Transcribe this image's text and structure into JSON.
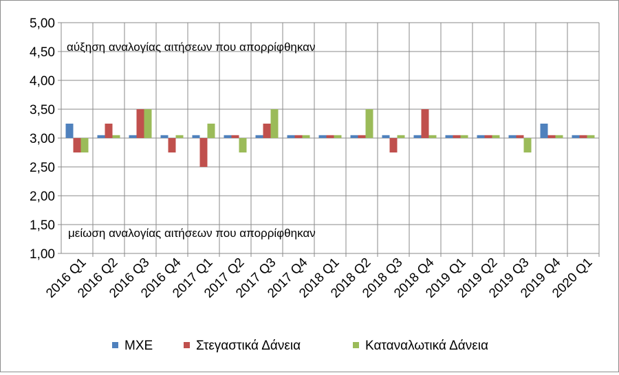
{
  "chart_data": {
    "type": "bar",
    "title": "",
    "xlabel": "",
    "ylabel": "",
    "ylim": [
      1.0,
      5.0
    ],
    "ytick_step": 0.5,
    "yticks": [
      "1,00",
      "1,50",
      "2,00",
      "2,50",
      "3,00",
      "3,50",
      "4,00",
      "4,50",
      "5,00"
    ],
    "baseline": 3.0,
    "grid": true,
    "legend_position": "bottom",
    "categories": [
      "2016 Q1",
      "2016 Q2",
      "2016 Q3",
      "2016 Q4",
      "2017 Q1",
      "2017 Q2",
      "2017 Q3",
      "2017 Q4",
      "2018 Q1",
      "2018 Q2",
      "2018 Q3",
      "2018 Q4",
      "2019 Q1",
      "2019 Q2",
      "2019 Q3",
      "2019 Q4",
      "2020 Q1"
    ],
    "series": [
      {
        "name": "ΜΧΕ",
        "color": "#4f81bd",
        "values": [
          3.25,
          3.05,
          3.05,
          3.05,
          3.05,
          3.05,
          3.05,
          3.05,
          3.05,
          3.05,
          3.05,
          3.05,
          3.05,
          3.05,
          3.05,
          3.25,
          3.05
        ]
      },
      {
        "name": "Στεγαστικά Δάνεια",
        "color": "#c0504d",
        "values": [
          2.75,
          3.25,
          3.5,
          2.75,
          2.5,
          3.05,
          3.25,
          3.05,
          3.05,
          3.05,
          2.75,
          3.5,
          3.05,
          3.05,
          3.05,
          3.05,
          3.05
        ]
      },
      {
        "name": "Καταναλωτικά Δάνεια",
        "color": "#9bbb59",
        "values": [
          2.75,
          3.05,
          3.5,
          3.05,
          3.25,
          2.75,
          3.5,
          3.05,
          3.05,
          3.5,
          3.05,
          3.05,
          3.05,
          3.05,
          2.75,
          3.05,
          3.05
        ]
      }
    ],
    "annotations": {
      "top": "αύξηση αναλογίας αιτήσεων που απορρίφθηκαν",
      "bottom": "μείωση αναλογίας αιτήσεων που απορρίφθηκαν"
    }
  }
}
